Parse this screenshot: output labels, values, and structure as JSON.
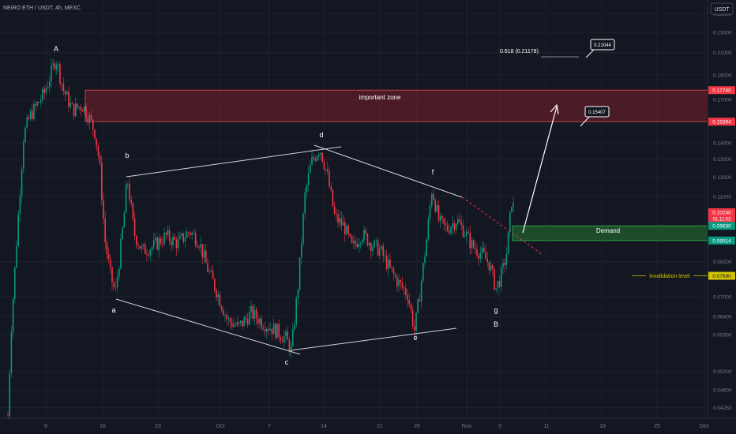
{
  "header": {
    "symbol": "NEIRO ETH / USDT, 4h, MEXC",
    "currency": "USDT"
  },
  "colors": {
    "background": "#131722",
    "grid": "#1e222d",
    "up": "#089981",
    "down": "#f23645",
    "zone_fill": "#7a1e2b",
    "demand_fill": "#1f5a2c",
    "invalidation": "#d4c400",
    "text": "#b2b5be"
  },
  "chart_data": {
    "type": "candlestick",
    "y_scale": "log",
    "ylim": [
      0.0405,
      0.2662
    ],
    "y_ticks": [
      "0.25000",
      "0.23000",
      "0.21000",
      "0.19000",
      "0.17000",
      "0.14000",
      "0.13000",
      "0.12000",
      "0.11000",
      "0.08200",
      "0.07000",
      "0.06400",
      "0.05900",
      "0.05000",
      "0.04600",
      "0.04250"
    ],
    "x_ticks": [
      "9",
      "16",
      "23",
      "Oct",
      "7",
      "14",
      "21",
      "26",
      "Nov",
      "5",
      "11",
      "18",
      "25",
      "Dec"
    ],
    "price_labels": [
      {
        "text": "0.17740",
        "value": 0.1774,
        "color": "#f23645"
      },
      {
        "text": "0.15394",
        "value": 0.15394,
        "color": "#f23645"
      },
      {
        "text": "0.10240",
        "value": 0.1024,
        "color": "#f23645",
        "countdown": "01:11:53"
      },
      {
        "text": "0.09630",
        "value": 0.0963,
        "color": "#089981"
      },
      {
        "text": "0.09014",
        "value": 0.09014,
        "color": "#089981"
      },
      {
        "text": "0.07690",
        "value": 0.0769,
        "color": "#d4c400"
      }
    ],
    "zones": [
      {
        "label": "important zone",
        "from_value": 0.15394,
        "to_value": 0.1774,
        "color": "#f23645"
      },
      {
        "label": "Demand",
        "from_value": 0.09014,
        "to_value": 0.0963,
        "color": "#089981"
      }
    ],
    "annotations": {
      "invalidation_label": "invalidation level",
      "invalidation_value": 0.0769,
      "fib_label": "0.618 (0.21178)",
      "callouts": [
        "0.21044",
        "0.15407"
      ]
    },
    "wave_labels": [
      "A",
      "b",
      "a",
      "c",
      "d",
      "e",
      "f",
      "g",
      "B"
    ],
    "key_points": [
      {
        "label": "A",
        "value": 0.205
      },
      {
        "label": "a",
        "value": 0.071
      },
      {
        "label": "b",
        "value": 0.12
      },
      {
        "label": "c",
        "value": 0.055
      },
      {
        "label": "d",
        "value": 0.137
      },
      {
        "label": "e",
        "value": 0.06
      },
      {
        "label": "f",
        "value": 0.114
      },
      {
        "label": "g",
        "value": 0.0725
      },
      {
        "label": "B",
        "value": 0.1024
      }
    ]
  }
}
